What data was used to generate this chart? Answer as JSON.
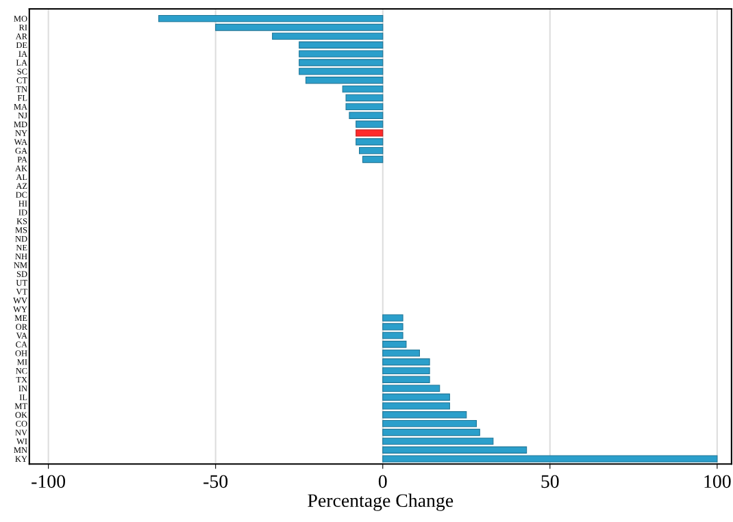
{
  "chart_data": {
    "type": "bar",
    "orientation": "horizontal",
    "xlabel": "Percentage Change",
    "categories": [
      "MO",
      "RI",
      "AR",
      "DE",
      "IA",
      "LA",
      "SC",
      "CT",
      "TN",
      "FL",
      "MA",
      "NJ",
      "MD",
      "NY",
      "WA",
      "GA",
      "PA",
      "AK",
      "AL",
      "AZ",
      "DC",
      "HI",
      "ID",
      "KS",
      "MS",
      "ND",
      "NE",
      "NH",
      "NM",
      "SD",
      "UT",
      "VT",
      "WV",
      "WY",
      "ME",
      "OR",
      "VA",
      "CA",
      "OH",
      "MI",
      "NC",
      "TX",
      "IN",
      "IL",
      "MT",
      "OK",
      "CO",
      "NV",
      "WI",
      "MN",
      "KY"
    ],
    "values": [
      -67,
      -50,
      -33,
      -25,
      -25,
      -25,
      -25,
      -23,
      -12,
      -11,
      -11,
      -10,
      -8,
      -8,
      -8,
      -7,
      -6,
      0,
      0,
      0,
      0,
      0,
      0,
      0,
      0,
      0,
      0,
      0,
      0,
      0,
      0,
      0,
      0,
      0,
      6,
      6,
      6,
      7,
      11,
      14,
      14,
      14,
      17,
      20,
      20,
      25,
      28,
      29,
      33,
      43,
      100
    ],
    "colors": [
      "#2b9fcb",
      "#2b9fcb",
      "#2b9fcb",
      "#2b9fcb",
      "#2b9fcb",
      "#2b9fcb",
      "#2b9fcb",
      "#2b9fcb",
      "#2b9fcb",
      "#2b9fcb",
      "#2b9fcb",
      "#2b9fcb",
      "#2b9fcb",
      "#ff2a2a",
      "#2b9fcb",
      "#2b9fcb",
      "#2b9fcb",
      "#2b9fcb",
      "#2b9fcb",
      "#2b9fcb",
      "#2b9fcb",
      "#2b9fcb",
      "#2b9fcb",
      "#2b9fcb",
      "#2b9fcb",
      "#2b9fcb",
      "#2b9fcb",
      "#2b9fcb",
      "#2b9fcb",
      "#2b9fcb",
      "#2b9fcb",
      "#2b9fcb",
      "#2b9fcb",
      "#2b9fcb",
      "#2b9fcb",
      "#2b9fcb",
      "#2b9fcb",
      "#2b9fcb",
      "#2b9fcb",
      "#2b9fcb",
      "#2b9fcb",
      "#2b9fcb",
      "#2b9fcb",
      "#2b9fcb",
      "#2b9fcb",
      "#2b9fcb",
      "#2b9fcb",
      "#2b9fcb",
      "#2b9fcb",
      "#2b9fcb",
      "#2b9fcb"
    ],
    "xlim": [
      -105.7,
      104.3
    ],
    "xticks": [
      {
        "value": -100,
        "label": "-100"
      },
      {
        "value": -50,
        "label": "-50"
      },
      0,
      50,
      100
    ],
    "grid": "x",
    "legend": false
  }
}
